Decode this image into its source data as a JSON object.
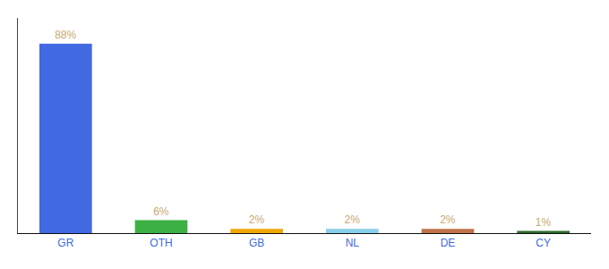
{
  "chart_data": {
    "type": "bar",
    "categories": [
      "GR",
      "OTH",
      "GB",
      "NL",
      "DE",
      "CY"
    ],
    "values": [
      88,
      6,
      2,
      2,
      2,
      1
    ],
    "value_labels": [
      "88%",
      "6%",
      "2%",
      "2%",
      "2%",
      "1%"
    ],
    "colors": [
      "#4169e1",
      "#3cb043",
      "#f0a500",
      "#87ceeb",
      "#c0724a",
      "#2d6a2d"
    ],
    "ylim": [
      0,
      100
    ],
    "data_labels": true,
    "tick_labels": "x",
    "grid": false
  }
}
